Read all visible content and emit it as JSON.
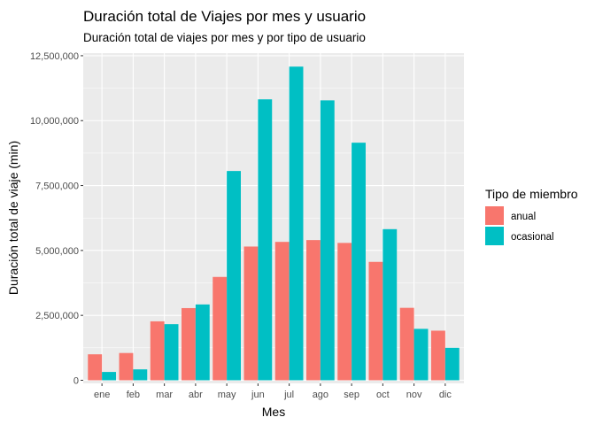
{
  "chart_data": {
    "type": "bar",
    "title": "Duración total de Viajes por mes y usuario",
    "subtitle": "Duración total de viajes por mes y por tipo de usuario",
    "xlabel": "Mes",
    "ylabel": "Duración total de viaje (min)",
    "categories": [
      "ene",
      "feb",
      "mar",
      "abr",
      "may",
      "jun",
      "jul",
      "ago",
      "sep",
      "oct",
      "nov",
      "dic"
    ],
    "series": [
      {
        "name": "anual",
        "color": "#F8766D",
        "values": [
          1000000,
          1050000,
          2270000,
          2780000,
          3980000,
          5150000,
          5330000,
          5400000,
          5290000,
          4560000,
          2790000,
          1910000
        ]
      },
      {
        "name": "ocasional",
        "color": "#00BFC4",
        "values": [
          320000,
          420000,
          2160000,
          2920000,
          8060000,
          10820000,
          12080000,
          10780000,
          9150000,
          5820000,
          1980000,
          1250000
        ]
      }
    ],
    "ylim": [
      -120000,
      12600000
    ],
    "yticks": [
      0,
      2500000,
      5000000,
      7500000,
      10000000,
      12500000
    ],
    "ytick_labels": [
      "0",
      "2,500,000",
      "5,000,000",
      "7,500,000",
      "10,000,000",
      "12,500,000"
    ],
    "grid": true,
    "panel_background": "#EBEBEB",
    "legend": {
      "title": "Tipo de miembro",
      "position": "right",
      "labels": [
        "anual",
        "ocasional"
      ]
    }
  }
}
